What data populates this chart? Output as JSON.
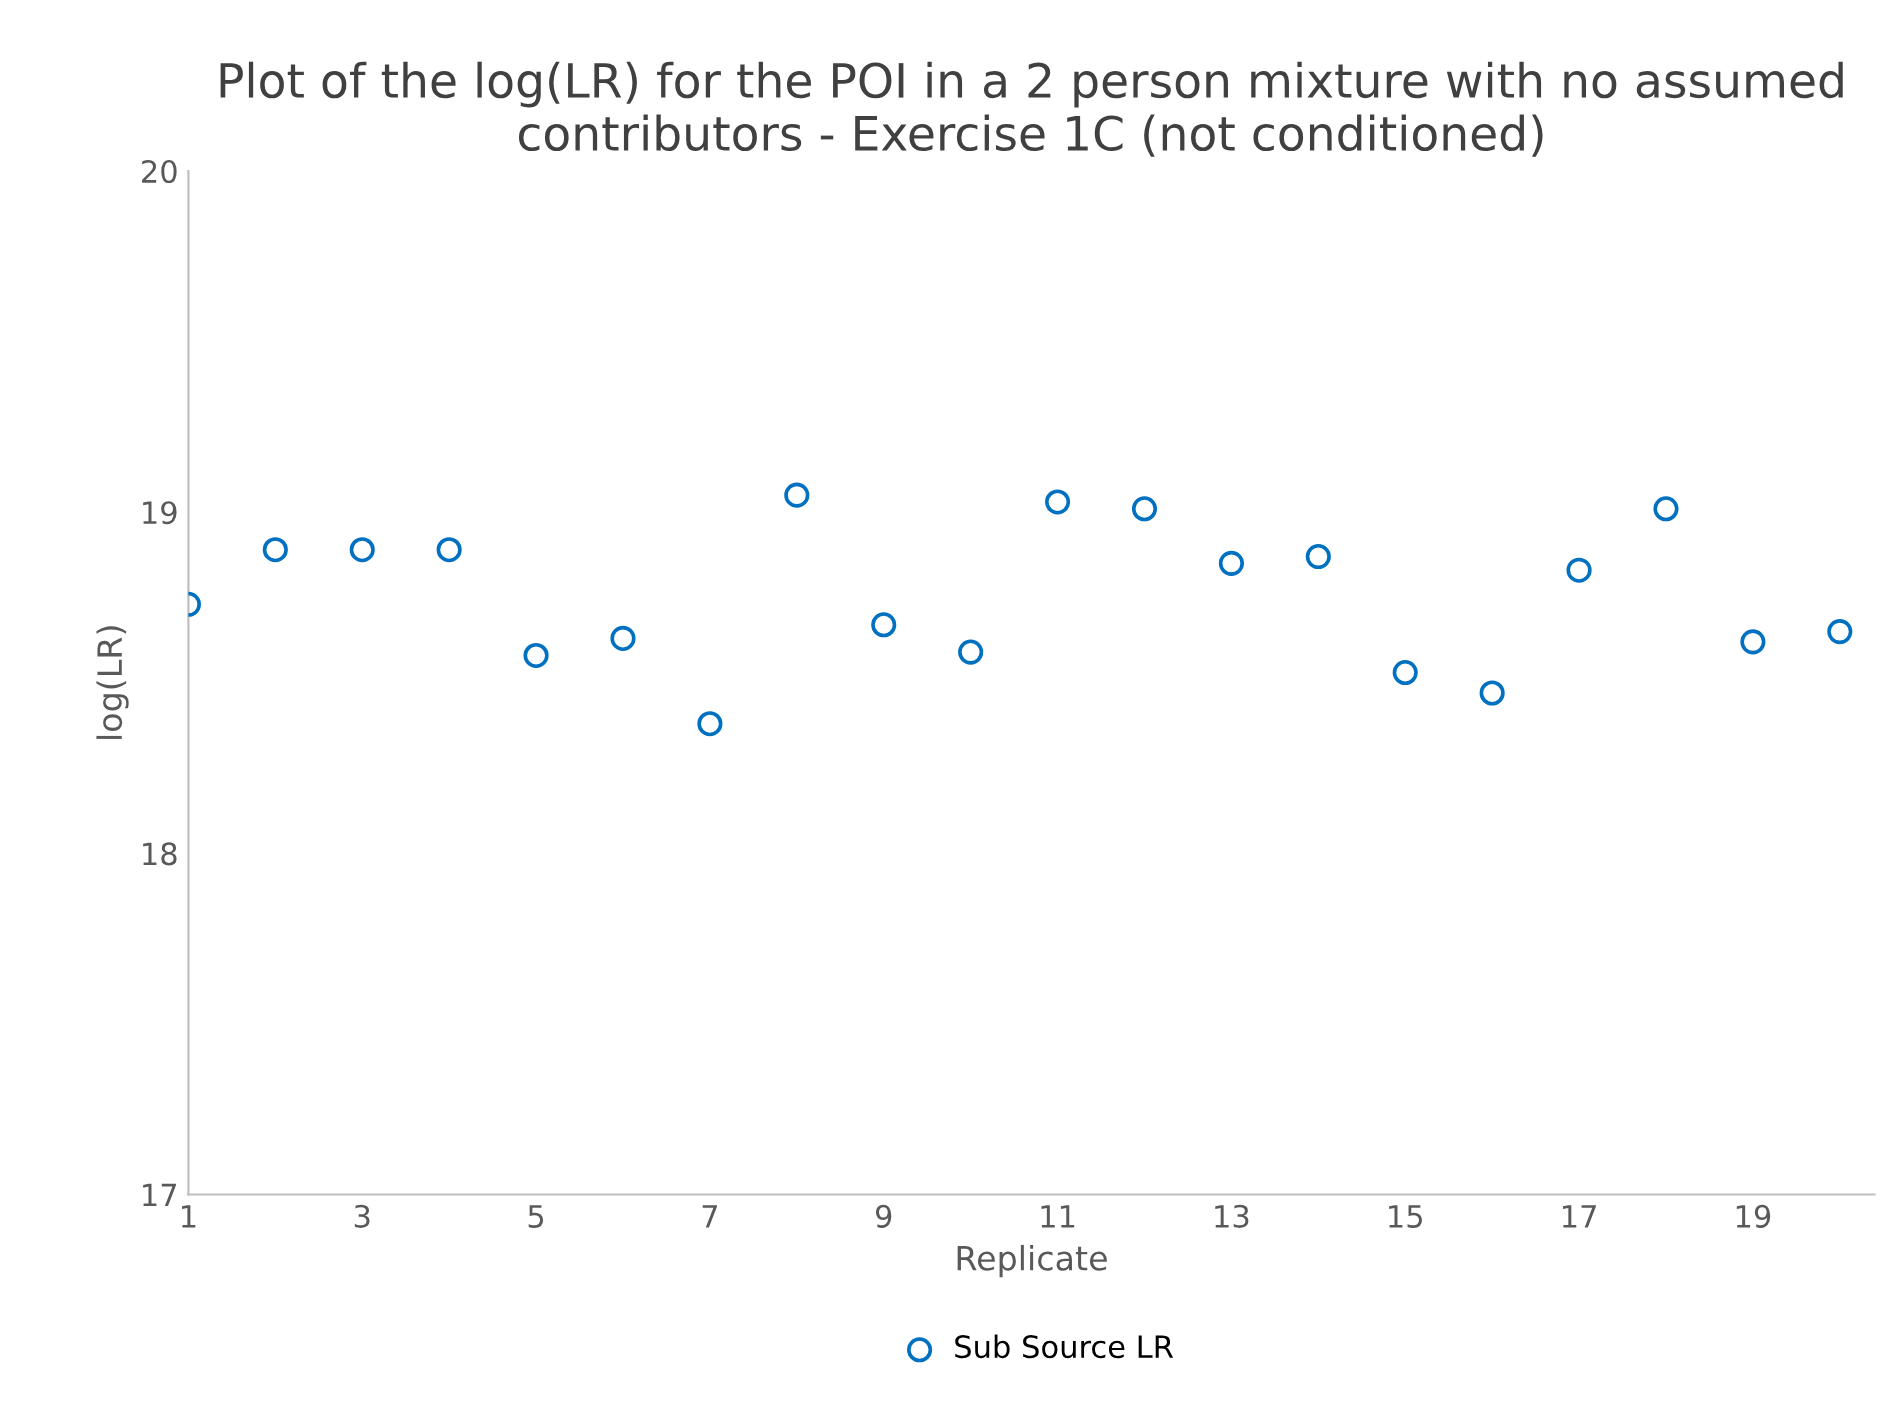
{
  "chart_data": {
    "type": "scatter",
    "title": "Plot of the log(LR) for the POI in a 2 person mixture with no assumed contributors - Exercise 1C (not conditioned)",
    "xlabel": "Replicate",
    "ylabel": "log(LR)",
    "x": [
      1,
      2,
      3,
      4,
      5,
      6,
      7,
      8,
      9,
      10,
      11,
      12,
      13,
      14,
      15,
      16,
      17,
      18,
      19,
      20
    ],
    "series": [
      {
        "name": "Sub Source LR",
        "color": "#0070c0",
        "values": [
          18.73,
          18.89,
          18.89,
          18.89,
          18.58,
          18.63,
          18.38,
          19.05,
          18.67,
          18.59,
          19.03,
          19.01,
          18.85,
          18.87,
          18.53,
          18.47,
          18.83,
          19.01,
          18.62,
          18.65
        ]
      }
    ],
    "xlim": [
      1,
      20.4
    ],
    "xticks": [
      1,
      3,
      5,
      7,
      9,
      11,
      13,
      15,
      17,
      19
    ],
    "ylim": [
      17,
      20
    ],
    "yticks": [
      17,
      18,
      19,
      20
    ],
    "grid": false,
    "legend": "bottom",
    "marker": "circle"
  }
}
